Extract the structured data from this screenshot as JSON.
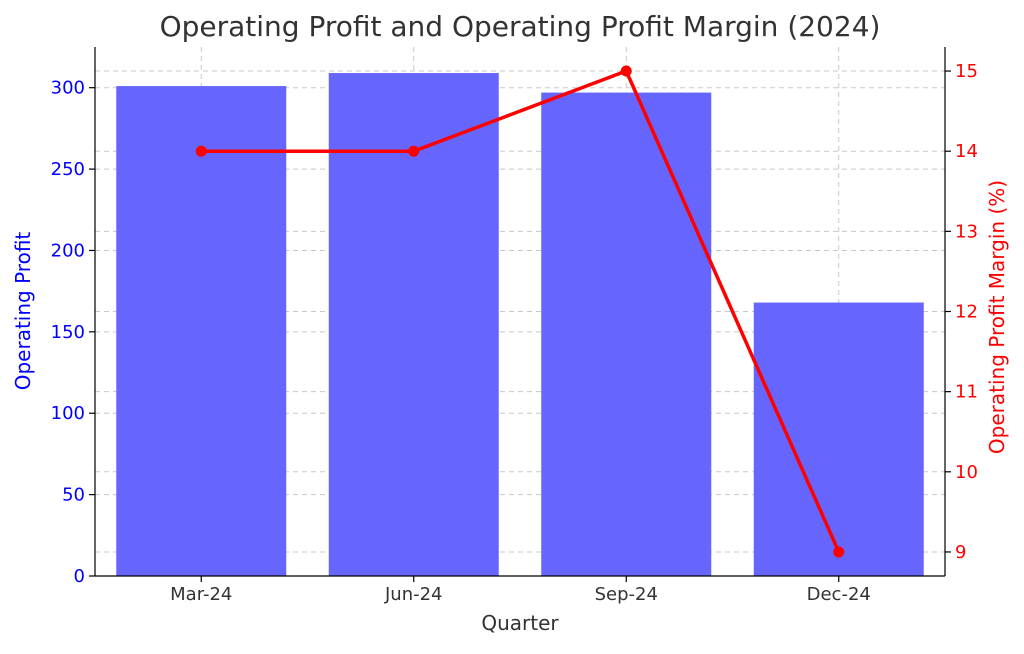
{
  "chart_data": {
    "type": "bar",
    "title": "Operating Profit and Operating Profit Margin (2024)",
    "xlabel": "Quarter",
    "categories": [
      "Mar-24",
      "Jun-24",
      "Sep-24",
      "Dec-24"
    ],
    "series": [
      {
        "type": "bar",
        "axis": "left",
        "ylabel": "Operating Profit",
        "color": "#6666ff",
        "values": [
          301,
          309,
          297,
          168
        ]
      },
      {
        "type": "line",
        "axis": "right",
        "ylabel": "Operating Profit Margin (%)",
        "color": "#ff0000",
        "values": [
          14,
          14,
          15,
          9
        ]
      }
    ],
    "y_left": {
      "ylim": [
        0,
        325
      ],
      "ticks": [
        0,
        50,
        100,
        150,
        200,
        250,
        300
      ],
      "color": "#0000ff"
    },
    "y_right": {
      "ylim": [
        8.7,
        15.3
      ],
      "ticks": [
        9,
        10,
        11,
        12,
        13,
        14,
        15
      ],
      "color": "#ff0000"
    },
    "grid": true
  }
}
